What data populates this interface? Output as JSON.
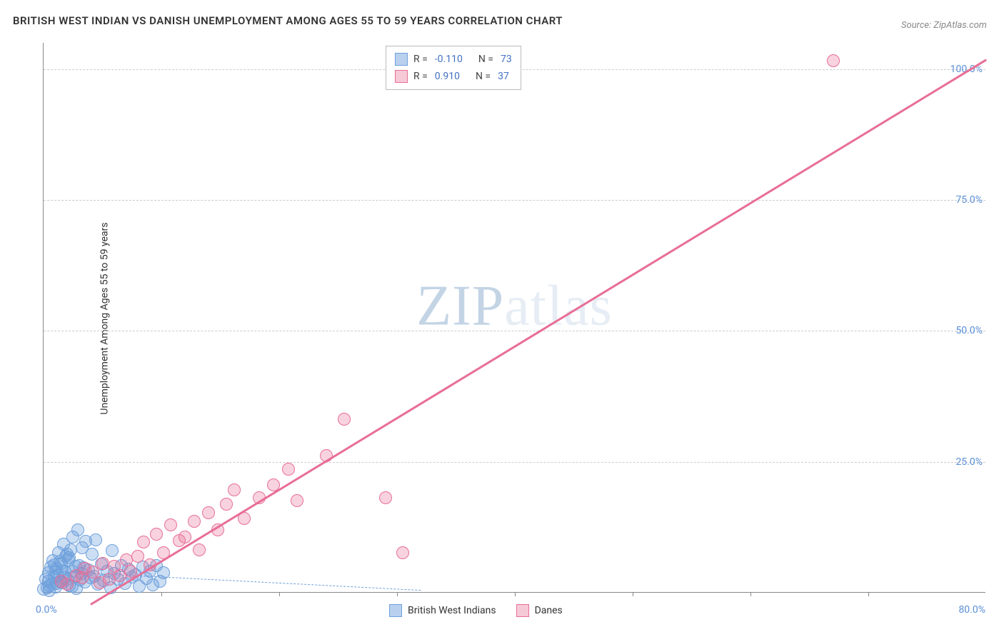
{
  "title": "BRITISH WEST INDIAN VS DANISH UNEMPLOYMENT AMONG AGES 55 TO 59 YEARS CORRELATION CHART",
  "source": "Source: ZipAtlas.com",
  "y_axis_label": "Unemployment Among Ages 55 to 59 years",
  "watermark_a": "ZIP",
  "watermark_b": "atlas",
  "chart": {
    "type": "scatter",
    "background_color": "#ffffff",
    "grid_color": "#cccccc",
    "axis_color": "#888888",
    "xlim": [
      0,
      80
    ],
    "ylim": [
      0,
      105
    ],
    "x_origin_label": "0.0%",
    "x_max_label": "80.0%",
    "xticks": [
      10,
      20,
      30,
      40,
      50,
      60,
      70
    ],
    "yticks": [
      {
        "value": 25,
        "label": "25.0%"
      },
      {
        "value": 50,
        "label": "50.0%"
      },
      {
        "value": 75,
        "label": "75.0%"
      },
      {
        "value": 100,
        "label": "100.0%"
      }
    ],
    "tick_label_color": "#5a8fd6",
    "series": [
      {
        "name": "British West Indians",
        "fill_color": "rgba(110,160,220,0.35)",
        "stroke_color": "#6ea0dc",
        "swatch_fill": "#b9d1ee",
        "swatch_border": "#6ea0dc",
        "R_label": "R =",
        "R_value": "-0.110",
        "N_label": "N =",
        "N_value": "73",
        "trend": {
          "x1": 0,
          "y1": 4.2,
          "x2": 32,
          "y2": 0.5,
          "color": "#6ea0dc",
          "dash": true,
          "width": 1.5
        },
        "points": [
          [
            0,
            0.5
          ],
          [
            0.3,
            0.8
          ],
          [
            0.5,
            1.2
          ],
          [
            0.4,
            2.1
          ],
          [
            0.7,
            1.5
          ],
          [
            0.9,
            2.8
          ],
          [
            1.0,
            0.9
          ],
          [
            1.2,
            3.2
          ],
          [
            1.4,
            2.0
          ],
          [
            1.1,
            4.5
          ],
          [
            1.6,
            1.8
          ],
          [
            1.8,
            3.8
          ],
          [
            2.0,
            2.5
          ],
          [
            1.5,
            5.5
          ],
          [
            2.2,
            1.2
          ],
          [
            2.4,
            4.0
          ],
          [
            2.1,
            6.2
          ],
          [
            2.6,
            2.9
          ],
          [
            2.8,
            0.7
          ],
          [
            3.0,
            5.0
          ],
          [
            1.3,
            7.5
          ],
          [
            3.2,
            3.5
          ],
          [
            3.5,
            1.9
          ],
          [
            2.3,
            8.0
          ],
          [
            3.8,
            4.2
          ],
          [
            4.0,
            2.7
          ],
          [
            1.7,
            9.2
          ],
          [
            4.3,
            3.0
          ],
          [
            2.5,
            10.5
          ],
          [
            4.6,
            1.5
          ],
          [
            4.9,
            5.3
          ],
          [
            5.1,
            2.2
          ],
          [
            2.9,
            11.8
          ],
          [
            5.4,
            4.0
          ],
          [
            5.7,
            0.8
          ],
          [
            6.0,
            3.6
          ],
          [
            1.9,
            6.8
          ],
          [
            6.3,
            2.4
          ],
          [
            6.6,
            5.0
          ],
          [
            3.3,
            8.5
          ],
          [
            6.9,
            1.7
          ],
          [
            7.2,
            4.4
          ],
          [
            7.5,
            2.9
          ],
          [
            3.6,
            9.7
          ],
          [
            7.8,
            3.3
          ],
          [
            8.1,
            1.1
          ],
          [
            4.1,
            7.2
          ],
          [
            8.4,
            4.8
          ],
          [
            8.7,
            2.6
          ],
          [
            9.0,
            3.9
          ],
          [
            4.4,
            10.0
          ],
          [
            9.3,
            1.4
          ],
          [
            9.6,
            5.1
          ],
          [
            9.9,
            2.1
          ],
          [
            5.8,
            7.9
          ],
          [
            10.2,
            3.7
          ],
          [
            0.6,
            4.8
          ],
          [
            0.8,
            6.0
          ],
          [
            1.0,
            3.9
          ],
          [
            1.4,
            5.8
          ],
          [
            2.0,
            7.2
          ],
          [
            2.7,
            4.9
          ],
          [
            0.2,
            2.5
          ],
          [
            0.4,
            3.7
          ],
          [
            0.9,
            5.2
          ],
          [
            1.6,
            4.1
          ],
          [
            2.2,
            6.5
          ],
          [
            3.1,
            2.3
          ],
          [
            0.5,
            0.3
          ],
          [
            1.1,
            1.6
          ],
          [
            1.8,
            2.9
          ],
          [
            2.4,
            1.1
          ],
          [
            3.4,
            4.6
          ]
        ]
      },
      {
        "name": "Danes",
        "fill_color": "rgba(232,110,150,0.30)",
        "stroke_color": "#e86e96",
        "swatch_fill": "#f6c9d7",
        "swatch_border": "#e86e96",
        "R_label": "R =",
        "R_value": "0.910",
        "N_label": "N =",
        "N_value": "37",
        "trend": {
          "x1": 4,
          "y1": -2,
          "x2": 80,
          "y2": 102,
          "color": "#e86e96",
          "dash": false,
          "width": 3
        },
        "points": [
          [
            1.5,
            2.0
          ],
          [
            2.0,
            1.5
          ],
          [
            2.8,
            3.2
          ],
          [
            3.3,
            2.7
          ],
          [
            3.5,
            4.5
          ],
          [
            4.2,
            3.8
          ],
          [
            4.8,
            1.8
          ],
          [
            5.0,
            5.5
          ],
          [
            5.6,
            2.4
          ],
          [
            6.0,
            4.9
          ],
          [
            6.5,
            3.1
          ],
          [
            7.0,
            6.2
          ],
          [
            7.4,
            4.0
          ],
          [
            8.0,
            6.8
          ],
          [
            8.5,
            9.5
          ],
          [
            9.0,
            5.2
          ],
          [
            9.6,
            11.0
          ],
          [
            10.2,
            7.5
          ],
          [
            10.8,
            12.8
          ],
          [
            11.5,
            9.8
          ],
          [
            12.0,
            10.5
          ],
          [
            12.8,
            13.5
          ],
          [
            13.2,
            8.0
          ],
          [
            14.0,
            15.2
          ],
          [
            14.8,
            11.8
          ],
          [
            15.5,
            16.8
          ],
          [
            16.2,
            19.5
          ],
          [
            17.0,
            14.0
          ],
          [
            18.3,
            18.0
          ],
          [
            19.5,
            20.5
          ],
          [
            20.8,
            23.5
          ],
          [
            21.5,
            17.5
          ],
          [
            24.0,
            26.0
          ],
          [
            25.5,
            33.0
          ],
          [
            29.0,
            18.0
          ],
          [
            30.5,
            7.5
          ],
          [
            67.0,
            101.5
          ]
        ]
      }
    ]
  },
  "legend_bottom": [
    {
      "label": "British West Indians",
      "fill": "#b9d1ee",
      "border": "#6ea0dc"
    },
    {
      "label": "Danes",
      "fill": "#f6c9d7",
      "border": "#e86e96"
    }
  ]
}
